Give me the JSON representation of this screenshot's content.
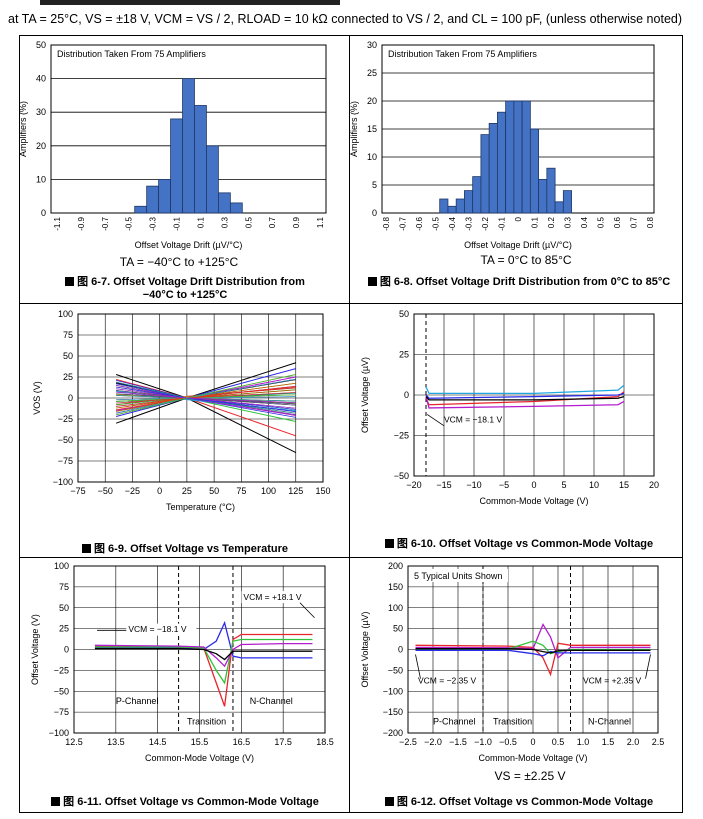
{
  "header": {
    "text": "at TA = 25°C, VS = ±18 V, VCM = VS / 2, RLOAD = 10 kΩ connected to VS / 2, and CL = 100 pF, (unless otherwise noted)"
  },
  "colors": {
    "bar_fill": "#4472c4",
    "bar_stroke": "#1f3864",
    "red": "#e8242b",
    "green": "#31c23a",
    "blue": "#2a2ae8",
    "purple": "#b31bcf",
    "cyan": "#22a6e0",
    "black": "#000000"
  },
  "charts": {
    "fig7": {
      "caption_num": "图 6-7.",
      "caption_text": "Offset Voltage Drift Distribution from",
      "caption_text2": "−40°C to +125°C",
      "note": "TA = −40°C to +125°C"
    },
    "fig8": {
      "caption_num": "图 6-8.",
      "caption_text": "Offset Voltage Drift Distribution from 0°C to 85°C",
      "note": "TA = 0°C to 85°C"
    },
    "fig9": {
      "caption_num": "图 6-9.",
      "caption_text": "Offset Voltage vs Temperature"
    },
    "fig10": {
      "caption_num": "图 6-10.",
      "caption_text": "Offset Voltage vs Common-Mode Voltage"
    },
    "fig11": {
      "caption_num": "图 6-11.",
      "caption_text": "Offset Voltage vs Common-Mode Voltage"
    },
    "fig12": {
      "caption_num": "图 6-12.",
      "caption_text": "Offset Voltage vs Common-Mode Voltage",
      "note": "VS = ±2.25 V"
    }
  },
  "chart_data": [
    {
      "id": "fig7",
      "type": "bar",
      "title": "Distribution Taken From 75 Amplifiers",
      "xlabel": "Offset Voltage Drift (µV/°C)",
      "ylabel": "Amplifiers (%)",
      "ylim": [
        0,
        50
      ],
      "yticks": [
        "0",
        "10",
        "20",
        "30",
        "40",
        "50"
      ],
      "categories": [
        "-1.1",
        "-1",
        "-0.9",
        "-0.8",
        "-0.7",
        "-0.6",
        "-0.5",
        "-0.4",
        "-0.3",
        "-0.2",
        "-0.1",
        "0",
        "0.1",
        "0.2",
        "0.3",
        "0.4",
        "0.5",
        "0.6",
        "0.7",
        "0.8",
        "0.9",
        "1",
        "1.1"
      ],
      "tick_labels": [
        "-1.1",
        "",
        "-0.9",
        "",
        "-0.7",
        "",
        "-0.5",
        "",
        "-0.3",
        "",
        "-0.1",
        "",
        "0.1",
        "",
        "0.3",
        "",
        "0.5",
        "",
        "0.7",
        "",
        "0.9",
        "",
        "1.1"
      ],
      "values": [
        0,
        0,
        0,
        0,
        0,
        0,
        0,
        2,
        8,
        10,
        28,
        40,
        32,
        20,
        6,
        3,
        0,
        0,
        0,
        0,
        0,
        0,
        0
      ]
    },
    {
      "id": "fig8",
      "type": "bar",
      "title": "Distribution Taken From 75 Amplifiers",
      "xlabel": "Offset Voltage Drift (µV/°C)",
      "ylabel": "Amplifiers (%)",
      "ylim": [
        0,
        30
      ],
      "yticks": [
        "0",
        "5",
        "10",
        "15",
        "20",
        "25",
        "30"
      ],
      "categories": [
        "-0.8",
        "-0.75",
        "-0.7",
        "-0.65",
        "-0.6",
        "-0.55",
        "-0.5",
        "-0.45",
        "-0.4",
        "-0.35",
        "-0.3",
        "-0.25",
        "-0.2",
        "-0.15",
        "-0.1",
        "-0.05",
        "0",
        "0.05",
        "0.1",
        "0.15",
        "0.2",
        "0.25",
        "0.3",
        "0.35",
        "0.4",
        "0.45",
        "0.5",
        "0.55",
        "0.6",
        "0.65",
        "0.7",
        "0.75",
        "0.8"
      ],
      "tick_labels": [
        "-0.8",
        "",
        "-0.7",
        "",
        "-0.6",
        "",
        "-0.5",
        "",
        "-0.4",
        "",
        "-0.3",
        "",
        "-0.2",
        "",
        "-0.1",
        "",
        "0",
        "",
        "0.1",
        "",
        "0.2",
        "",
        "0.3",
        "",
        "0.4",
        "",
        "0.5",
        "",
        "0.6",
        "",
        "0.7",
        "",
        "0.8"
      ],
      "values": [
        0,
        0,
        0,
        0,
        0,
        0,
        0,
        2.5,
        1.2,
        2.5,
        4,
        6.5,
        14,
        16,
        18,
        20,
        20,
        20,
        15,
        6,
        8,
        2,
        4,
        0,
        0,
        0,
        0,
        0,
        0,
        0,
        0,
        0,
        0
      ]
    },
    {
      "id": "fig9",
      "type": "line",
      "xlabel": "Temperature (°C)",
      "ylabel": "VOS (V)",
      "xlim": [
        -75,
        150
      ],
      "ylim": [
        -100,
        100
      ],
      "xticks": [
        "−75",
        "−50",
        "−25",
        "0",
        "25",
        "50",
        "75",
        "100",
        "125",
        "150"
      ],
      "yticks": [
        "100",
        "75",
        "50",
        "25",
        "0",
        "−25",
        "−50",
        "−75",
        "−100"
      ],
      "series": [
        {
          "name": "u1",
          "x": [
            -40,
            25,
            125
          ],
          "y": [
            28,
            0,
            -65
          ]
        },
        {
          "name": "u2",
          "x": [
            -40,
            25,
            125
          ],
          "y": [
            -30,
            0,
            42
          ]
        },
        {
          "name": "u3",
          "x": [
            -40,
            25,
            125
          ],
          "y": [
            22,
            0,
            -45
          ]
        },
        {
          "name": "u4",
          "x": [
            -40,
            25,
            125
          ],
          "y": [
            -22,
            0,
            35
          ]
        },
        {
          "name": "u5",
          "x": [
            -40,
            25,
            125
          ],
          "y": [
            15,
            0,
            -28
          ]
        },
        {
          "name": "u6",
          "x": [
            -40,
            25,
            125
          ],
          "y": [
            -15,
            0,
            25
          ]
        },
        {
          "name": "u7",
          "x": [
            -40,
            25,
            125
          ],
          "y": [
            8,
            -2,
            -15
          ]
        },
        {
          "name": "u8",
          "x": [
            -40,
            25,
            125
          ],
          "y": [
            -8,
            2,
            12
          ]
        },
        {
          "name": "u9",
          "x": [
            -40,
            25,
            125
          ],
          "y": [
            18,
            0,
            22
          ]
        },
        {
          "name": "u10",
          "x": [
            -40,
            25,
            125
          ],
          "y": [
            -18,
            0,
            -20
          ]
        },
        {
          "name": "u11",
          "x": [
            -40,
            25,
            125
          ],
          "y": [
            4,
            1,
            -6
          ]
        },
        {
          "name": "u12",
          "x": [
            -40,
            25,
            125
          ],
          "y": [
            -4,
            -1,
            6
          ]
        }
      ]
    },
    {
      "id": "fig10",
      "type": "line",
      "xlabel": "Common-Mode Voltage (V)",
      "ylabel": "Offset Voltage (µV)",
      "xlim": [
        -20,
        20
      ],
      "ylim": [
        -50,
        50
      ],
      "xticks": [
        "−20",
        "−15",
        "−10",
        "−5",
        "0",
        "5",
        "10",
        "15",
        "20"
      ],
      "yticks": [
        "50",
        "25",
        "0",
        "−25",
        "−50"
      ],
      "annotation": "VCM = −18.1 V",
      "series": [
        {
          "name": "cyan",
          "x": [
            -18,
            -17.5,
            0,
            14,
            15
          ],
          "y": [
            5,
            1,
            1,
            3,
            6
          ]
        },
        {
          "name": "red",
          "x": [
            -18,
            -17.5,
            0,
            14,
            15
          ],
          "y": [
            -2,
            -6,
            -4,
            -1,
            2
          ]
        },
        {
          "name": "purple",
          "x": [
            -18,
            -17.5,
            0,
            14,
            15
          ],
          "y": [
            -1,
            -8,
            -7,
            -6,
            -4
          ]
        },
        {
          "name": "blue",
          "x": [
            -18,
            -17.5,
            0,
            14,
            15
          ],
          "y": [
            0,
            -2,
            -1,
            0,
            1
          ]
        },
        {
          "name": "black",
          "x": [
            -18,
            -17.5,
            0,
            14,
            15
          ],
          "y": [
            -1,
            -3,
            -3,
            -2,
            -1
          ]
        }
      ]
    },
    {
      "id": "fig11",
      "type": "line",
      "xlabel": "Common-Mode Voltage (V)",
      "ylabel": "Offset Voltage (V)",
      "xlim": [
        12.5,
        18.5
      ],
      "ylim": [
        -100,
        100
      ],
      "xticks": [
        "12.5",
        "13.5",
        "14.5",
        "15.5",
        "16.5",
        "17.5",
        "18.5"
      ],
      "yticks": [
        "100",
        "75",
        "50",
        "25",
        "0",
        "−25",
        "−50",
        "−75",
        "−100"
      ],
      "annotations": [
        "VCM = −18.1 V",
        "VCM = +18.1 V",
        "P-Channel",
        "N-Channel",
        "Transition"
      ],
      "series": [
        {
          "name": "blue",
          "x": [
            13,
            15,
            15.6,
            15.9,
            16.1,
            16.3,
            16.5,
            17.5,
            18.2
          ],
          "y": [
            2,
            2,
            0,
            10,
            32,
            -8,
            -10,
            -10,
            -10
          ]
        },
        {
          "name": "red",
          "x": [
            13,
            15,
            15.6,
            15.9,
            16.1,
            16.3,
            16.5,
            17.5,
            18.2
          ],
          "y": [
            4,
            3,
            2,
            -40,
            -68,
            12,
            18,
            18,
            18
          ]
        },
        {
          "name": "green",
          "x": [
            13,
            15,
            15.6,
            15.9,
            16.1,
            16.3,
            16.5,
            17.5,
            18.2
          ],
          "y": [
            3,
            3,
            2,
            -25,
            -40,
            10,
            12,
            12,
            12
          ]
        },
        {
          "name": "purple",
          "x": [
            13,
            15,
            15.6,
            15.9,
            16.1,
            16.3,
            16.5,
            17.5,
            18.2
          ],
          "y": [
            5,
            4,
            3,
            -10,
            -20,
            0,
            6,
            7,
            7
          ]
        },
        {
          "name": "black",
          "x": [
            13,
            15,
            15.6,
            15.9,
            16.1,
            16.3,
            16.5,
            17.5,
            18.2
          ],
          "y": [
            1,
            1,
            0,
            -5,
            -12,
            -2,
            -2,
            -2,
            -2
          ]
        }
      ]
    },
    {
      "id": "fig12",
      "type": "line",
      "title": "5 Typical Units Shown",
      "xlabel": "Common-Mode Voltage (V)",
      "ylabel": "Offset Voltage (µV)",
      "xlim": [
        -2.5,
        2.5
      ],
      "ylim": [
        -200,
        200
      ],
      "xticks": [
        "−2.5",
        "−2.0",
        "−1.5",
        "−1.0",
        "−0.5",
        "0",
        "0.5",
        "1.0",
        "1.5",
        "2.0",
        "2.5"
      ],
      "yticks": [
        "200",
        "150",
        "100",
        "50",
        "0",
        "−50",
        "−100",
        "−150",
        "−200"
      ],
      "annotations": [
        "VCM = −2.35 V",
        "VCM = +2.35 V",
        "P-Channel",
        "Transition",
        "N-Channel"
      ],
      "series": [
        {
          "name": "red",
          "x": [
            -2.35,
            -0.5,
            0,
            0.2,
            0.35,
            0.5,
            0.75,
            2.35
          ],
          "y": [
            10,
            8,
            5,
            -20,
            -60,
            15,
            10,
            10
          ]
        },
        {
          "name": "purple",
          "x": [
            -2.35,
            -0.5,
            0,
            0.2,
            0.35,
            0.5,
            0.75,
            2.35
          ],
          "y": [
            5,
            4,
            2,
            60,
            30,
            -20,
            5,
            5
          ]
        },
        {
          "name": "green",
          "x": [
            -2.35,
            -0.5,
            0,
            0.2,
            0.35,
            0.5,
            0.75,
            2.35
          ],
          "y": [
            0,
            1,
            20,
            10,
            -10,
            -5,
            0,
            0
          ]
        },
        {
          "name": "blue",
          "x": [
            -2.35,
            -0.5,
            0,
            0.2,
            0.35,
            0.5,
            0.75,
            2.35
          ],
          "y": [
            -2,
            -2,
            -10,
            -15,
            -5,
            -8,
            -8,
            -8
          ]
        },
        {
          "name": "black",
          "x": [
            -2.35,
            -0.5,
            0,
            0.2,
            0.35,
            0.5,
            0.75,
            2.35
          ],
          "y": [
            2,
            2,
            0,
            -5,
            -8,
            -3,
            -2,
            -2
          ]
        }
      ]
    }
  ]
}
